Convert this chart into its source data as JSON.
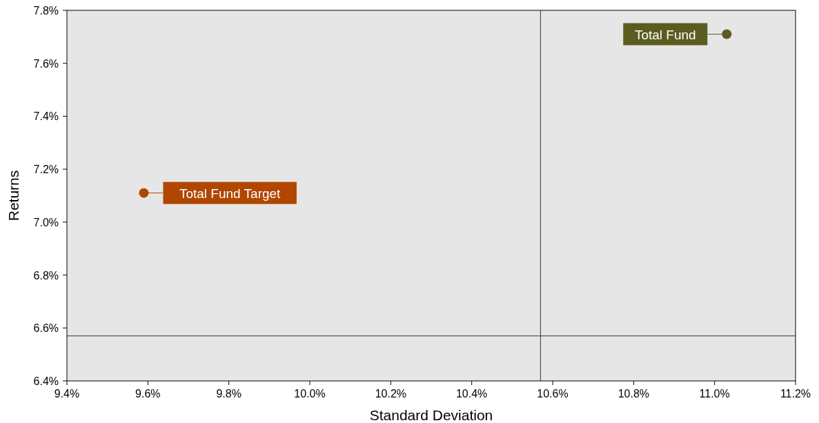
{
  "chart_data": {
    "type": "scatter",
    "xlabel": "Standard Deviation",
    "ylabel": "Returns",
    "series": [
      {
        "name": "Total Fund",
        "color": "#5b5c1f",
        "x": [
          11.03
        ],
        "values": [
          7.71
        ]
      },
      {
        "name": "Total Fund Target",
        "color": "#b04600",
        "x": [
          9.59
        ],
        "values": [
          7.11
        ]
      }
    ],
    "xlim": [
      9.4,
      11.2
    ],
    "xticks": [
      {
        "value": 9.4,
        "label": "9.4%"
      },
      {
        "value": 9.6,
        "label": "9.6%"
      },
      {
        "value": 9.8,
        "label": "9.8%"
      },
      {
        "value": 10.0,
        "label": "10.0%"
      },
      {
        "value": 10.2,
        "label": "10.2%"
      },
      {
        "value": 10.4,
        "label": "10.4%"
      },
      {
        "value": 10.6,
        "label": "10.6%"
      },
      {
        "value": 10.8,
        "label": "10.8%"
      },
      {
        "value": 11.0,
        "label": "11.0%"
      },
      {
        "value": 11.2,
        "label": "11.2%"
      }
    ],
    "ylim": [
      6.4,
      7.8
    ],
    "yticks": [
      {
        "value": 6.4,
        "label": "6.4%"
      },
      {
        "value": 6.6,
        "label": "6.6%"
      },
      {
        "value": 6.8,
        "label": "6.8%"
      },
      {
        "value": 7.0,
        "label": "7.0%"
      },
      {
        "value": 7.2,
        "label": "7.2%"
      },
      {
        "value": 7.4,
        "label": "7.4%"
      },
      {
        "value": 7.6,
        "label": "7.6%"
      },
      {
        "value": 7.8,
        "label": "7.8%"
      }
    ],
    "ref_lines": [
      {
        "axis": "x",
        "value": 10.57,
        "color": "#333333"
      },
      {
        "axis": "y",
        "value": 6.57,
        "color": "#333333"
      }
    ],
    "marker": "circle",
    "grid": false
  }
}
